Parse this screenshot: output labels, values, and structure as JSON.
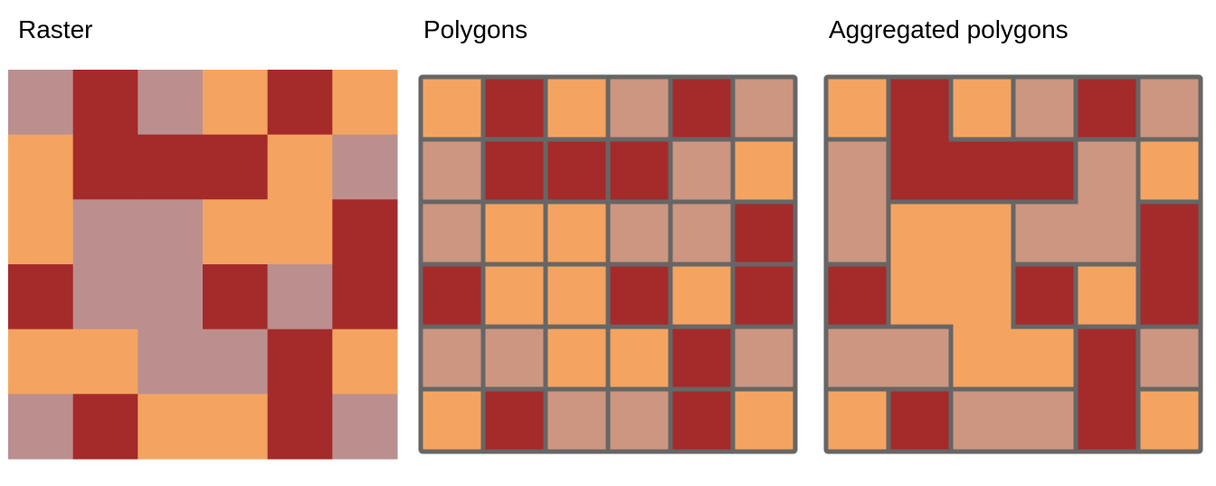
{
  "colors": {
    "R": "#A52A2A",
    "O": "#F4A460",
    "M": "#BC8F8F",
    "T": "#CD9680",
    "border": "#666666"
  },
  "panels": [
    {
      "title": "Raster",
      "type": "raster",
      "grid": [
        [
          "M",
          "R",
          "M",
          "O",
          "R",
          "O"
        ],
        [
          "O",
          "R",
          "R",
          "R",
          "O",
          "M"
        ],
        [
          "O",
          "M",
          "M",
          "O",
          "O",
          "R"
        ],
        [
          "R",
          "M",
          "M",
          "R",
          "M",
          "R"
        ],
        [
          "O",
          "O",
          "M",
          "M",
          "R",
          "O"
        ],
        [
          "M",
          "R",
          "O",
          "O",
          "R",
          "M"
        ]
      ]
    },
    {
      "title": "Polygons",
      "type": "polygons",
      "grid": [
        [
          "O",
          "R",
          "O",
          "T",
          "R",
          "T"
        ],
        [
          "T",
          "R",
          "R",
          "R",
          "T",
          "O"
        ],
        [
          "T",
          "O",
          "O",
          "T",
          "T",
          "R"
        ],
        [
          "R",
          "O",
          "O",
          "R",
          "O",
          "R"
        ],
        [
          "T",
          "T",
          "O",
          "O",
          "R",
          "T"
        ],
        [
          "O",
          "R",
          "T",
          "T",
          "R",
          "O"
        ]
      ]
    },
    {
      "title": "Aggregated polygons",
      "type": "aggregated",
      "grid": [
        [
          "O",
          "R",
          "O",
          "T",
          "R",
          "T"
        ],
        [
          "T",
          "R",
          "R",
          "R",
          "T",
          "O"
        ],
        [
          "T",
          "O",
          "O",
          "T",
          "T",
          "R"
        ],
        [
          "R",
          "O",
          "O",
          "R",
          "O",
          "R"
        ],
        [
          "T",
          "T",
          "O",
          "O",
          "R",
          "T"
        ],
        [
          "O",
          "R",
          "T",
          "T",
          "R",
          "O"
        ]
      ]
    }
  ]
}
